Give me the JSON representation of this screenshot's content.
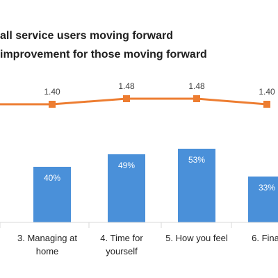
{
  "chart_data": {
    "type": "bar",
    "legend": [
      {
        "name": "all service users moving forward",
        "color": "#4a90d9"
      },
      {
        "name": "improvement for those moving forward",
        "color": "#ed7d31"
      }
    ],
    "categories": [
      "",
      "3. Managing at home",
      "4. Time for yourself",
      "5. How you feel",
      "6. Fina"
    ],
    "bar_values": [
      null,
      40,
      49,
      53,
      33
    ],
    "bar_labels": [
      "",
      "40%",
      "49%",
      "53%",
      "33%"
    ],
    "line_values": [
      null,
      1.4,
      1.48,
      1.48,
      1.4
    ],
    "line_labels": [
      "",
      "1.40",
      "1.48",
      "1.48",
      "1.40"
    ],
    "colors": {
      "bar": "#4a90d9",
      "line": "#ed7d31",
      "axis": "#d9d9d9"
    }
  }
}
